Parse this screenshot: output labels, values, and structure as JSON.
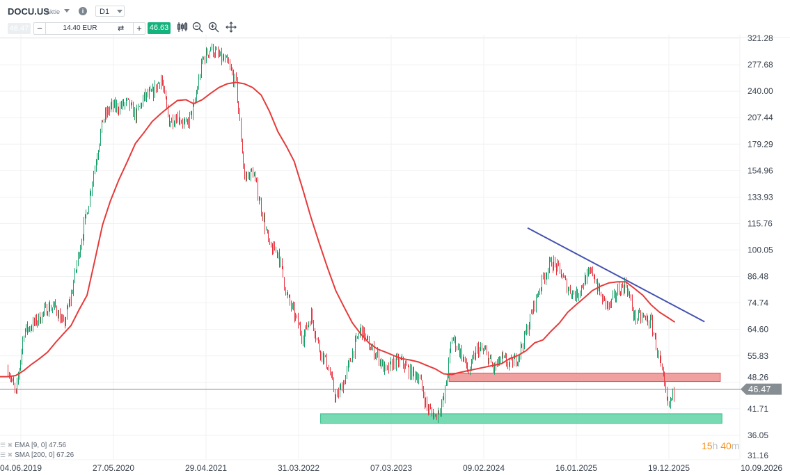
{
  "toolbar": {
    "symbol": "DOCU.US",
    "symbol_type": "Aktie",
    "info_icon": "info-icon",
    "timeframe": "D1",
    "sell_price": "46.47",
    "quantity": "14.40 EUR",
    "minus": "−",
    "plus": "+",
    "swap_icon": "⇄",
    "buy_price": "46.63",
    "tools": [
      "candlestick-icon",
      "zoom-out-icon",
      "zoom-in-icon",
      "move-icon"
    ]
  },
  "legend": [
    {
      "label": "EMA [9, 0] 47.56"
    },
    {
      "label": "SMA [200, 0] 67.26"
    }
  ],
  "countdown": {
    "hours": "15",
    "h": "h",
    "minutes": " 40",
    "m": "m"
  },
  "colors": {
    "up": "#16a06a",
    "down": "#e8323f",
    "sma": "#e63a3a",
    "trendline": "#4452b0",
    "resistance_zone": "#ef8f8f",
    "support_zone": "#5fd3a6",
    "last_price_tag": "#868e94"
  },
  "chart_data": {
    "type": "candlestick",
    "symbol": "DOCU.US",
    "y_scale": "log",
    "ylim": [
      31.16,
      321.28
    ],
    "y_ticks": [
      "321.28",
      "277.68",
      "240.00",
      "207.44",
      "179.29",
      "154.96",
      "133.93",
      "115.76",
      "100.05",
      "86.48",
      "74.74",
      "64.60",
      "55.83",
      "48.26",
      "41.71",
      "36.05",
      "31.16"
    ],
    "x_ticks": [
      "04.06.2019",
      "27.05.2020",
      "29.04.2021",
      "31.03.2022",
      "07.03.2023",
      "09.02.2024",
      "16.01.2025",
      "19.12.2025",
      "10.09.2026"
    ],
    "grid": true,
    "last_price": 46.47,
    "last_price_label": "46.47",
    "price_series": [
      [
        "2019-04-15",
        52
      ],
      [
        "2019-05-15",
        45
      ],
      [
        "2019-06-15",
        64
      ],
      [
        "2019-07-15",
        66
      ],
      [
        "2019-08-15",
        69
      ],
      [
        "2019-09-15",
        73
      ],
      [
        "2019-10-15",
        73
      ],
      [
        "2019-11-15",
        66
      ],
      [
        "2019-12-15",
        78
      ],
      [
        "2020-01-15",
        100
      ],
      [
        "2020-02-15",
        126
      ],
      [
        "2020-03-15",
        159
      ],
      [
        "2020-04-15",
        205
      ],
      [
        "2020-05-15",
        220
      ],
      [
        "2020-06-15",
        220
      ],
      [
        "2020-07-15",
        225
      ],
      [
        "2020-08-15",
        210
      ],
      [
        "2020-09-15",
        232
      ],
      [
        "2020-10-15",
        237
      ],
      [
        "2020-11-15",
        258
      ],
      [
        "2020-12-15",
        203
      ],
      [
        "2021-01-15",
        210
      ],
      [
        "2021-02-15",
        198
      ],
      [
        "2021-03-15",
        220
      ],
      [
        "2021-04-15",
        285
      ],
      [
        "2021-05-15",
        305
      ],
      [
        "2021-06-15",
        290
      ],
      [
        "2021-07-15",
        280
      ],
      [
        "2021-08-15",
        250
      ],
      [
        "2021-09-15",
        149
      ],
      [
        "2021-10-15",
        154
      ],
      [
        "2021-11-15",
        126
      ],
      [
        "2021-12-15",
        101
      ],
      [
        "2022-01-15",
        99
      ],
      [
        "2022-02-15",
        78
      ],
      [
        "2022-03-15",
        70
      ],
      [
        "2022-04-15",
        62
      ],
      [
        "2022-05-15",
        70
      ],
      [
        "2022-06-15",
        58
      ],
      [
        "2022-07-15",
        53
      ],
      [
        "2022-08-15",
        44
      ],
      [
        "2022-09-15",
        49
      ],
      [
        "2022-10-15",
        57
      ],
      [
        "2022-11-15",
        65
      ],
      [
        "2022-12-15",
        59
      ],
      [
        "2023-01-15",
        56
      ],
      [
        "2023-02-15",
        51
      ],
      [
        "2023-03-15",
        54
      ],
      [
        "2023-04-15",
        54
      ],
      [
        "2023-05-15",
        51
      ],
      [
        "2023-06-15",
        50
      ],
      [
        "2023-07-15",
        42
      ],
      [
        "2023-08-15",
        40
      ],
      [
        "2023-09-15",
        44
      ],
      [
        "2023-10-15",
        62
      ],
      [
        "2023-11-15",
        57
      ],
      [
        "2023-12-15",
        51
      ],
      [
        "2024-01-15",
        58
      ],
      [
        "2024-02-15",
        57
      ],
      [
        "2024-03-15",
        52
      ],
      [
        "2024-04-15",
        55
      ],
      [
        "2024-05-15",
        53
      ],
      [
        "2024-06-15",
        56
      ],
      [
        "2024-07-15",
        64
      ],
      [
        "2024-08-15",
        75
      ],
      [
        "2024-09-15",
        86
      ],
      [
        "2024-10-15",
        94
      ],
      [
        "2024-11-15",
        89
      ],
      [
        "2024-12-15",
        81
      ],
      [
        "2025-01-15",
        78
      ],
      [
        "2025-02-15",
        85
      ],
      [
        "2025-03-15",
        89
      ],
      [
        "2025-04-15",
        77
      ],
      [
        "2025-05-15",
        73
      ],
      [
        "2025-06-15",
        80
      ],
      [
        "2025-07-15",
        83
      ],
      [
        "2025-08-15",
        69
      ],
      [
        "2025-09-15",
        69
      ],
      [
        "2025-10-15",
        67
      ],
      [
        "2025-11-15",
        54
      ],
      [
        "2025-12-15",
        42
      ],
      [
        "2026-01-10",
        46.47
      ]
    ],
    "sma_200": [
      [
        "2019-04-15",
        49.8
      ],
      [
        "2019-05-15",
        50.1
      ],
      [
        "2019-06-15",
        51.5
      ],
      [
        "2019-07-15",
        53.3
      ],
      [
        "2019-08-15",
        55
      ],
      [
        "2019-09-15",
        57
      ],
      [
        "2019-10-15",
        60
      ],
      [
        "2019-11-15",
        63
      ],
      [
        "2019-12-15",
        66
      ],
      [
        "2020-01-15",
        72
      ],
      [
        "2020-02-15",
        78
      ],
      [
        "2020-03-15",
        94
      ],
      [
        "2020-04-15",
        115
      ],
      [
        "2020-05-15",
        131
      ],
      [
        "2020-06-15",
        147
      ],
      [
        "2020-07-15",
        162
      ],
      [
        "2020-08-15",
        180
      ],
      [
        "2020-09-15",
        191
      ],
      [
        "2020-10-15",
        203
      ],
      [
        "2020-11-15",
        212
      ],
      [
        "2020-12-15",
        220
      ],
      [
        "2021-01-15",
        228
      ],
      [
        "2021-02-15",
        229
      ],
      [
        "2021-03-15",
        224
      ],
      [
        "2021-04-15",
        229
      ],
      [
        "2021-05-15",
        237
      ],
      [
        "2021-06-15",
        245
      ],
      [
        "2021-07-15",
        250
      ],
      [
        "2021-08-15",
        252
      ],
      [
        "2021-09-15",
        250
      ],
      [
        "2021-10-15",
        245
      ],
      [
        "2021-11-15",
        235
      ],
      [
        "2021-12-15",
        215
      ],
      [
        "2022-01-15",
        192
      ],
      [
        "2022-02-15",
        177
      ],
      [
        "2022-03-15",
        163
      ],
      [
        "2022-04-15",
        140
      ],
      [
        "2022-05-15",
        120
      ],
      [
        "2022-06-15",
        104
      ],
      [
        "2022-07-15",
        91
      ],
      [
        "2022-08-15",
        80
      ],
      [
        "2022-09-15",
        73
      ],
      [
        "2022-10-15",
        67
      ],
      [
        "2022-11-15",
        63
      ],
      [
        "2022-12-15",
        60
      ],
      [
        "2023-01-15",
        58
      ],
      [
        "2023-02-15",
        57
      ],
      [
        "2023-03-15",
        56
      ],
      [
        "2023-04-15",
        55
      ],
      [
        "2023-05-15",
        54.6
      ],
      [
        "2023-06-15",
        54
      ],
      [
        "2023-07-15",
        53
      ],
      [
        "2023-08-15",
        52
      ],
      [
        "2023-09-15",
        50.6
      ],
      [
        "2023-10-15",
        50.4
      ],
      [
        "2023-11-15",
        51
      ],
      [
        "2023-12-15",
        51.5
      ],
      [
        "2024-01-15",
        52
      ],
      [
        "2024-02-15",
        52.5
      ],
      [
        "2024-03-15",
        53
      ],
      [
        "2024-04-15",
        53.5
      ],
      [
        "2024-05-15",
        55
      ],
      [
        "2024-06-15",
        56
      ],
      [
        "2024-07-15",
        57.5
      ],
      [
        "2024-08-15",
        60
      ],
      [
        "2024-09-15",
        61
      ],
      [
        "2024-10-15",
        64
      ],
      [
        "2024-11-15",
        67
      ],
      [
        "2024-12-15",
        71
      ],
      [
        "2025-01-15",
        74
      ],
      [
        "2025-02-15",
        77
      ],
      [
        "2025-03-15",
        80
      ],
      [
        "2025-04-15",
        82
      ],
      [
        "2025-05-15",
        83.5
      ],
      [
        "2025-06-15",
        84
      ],
      [
        "2025-07-15",
        84
      ],
      [
        "2025-08-15",
        81
      ],
      [
        "2025-09-15",
        78
      ],
      [
        "2025-10-15",
        74
      ],
      [
        "2025-11-15",
        71
      ],
      [
        "2025-12-15",
        69
      ],
      [
        "2026-01-10",
        67.26
      ]
    ],
    "trendline": {
      "from": [
        "2024-07-20",
        113
      ],
      "to": [
        "2026-05-01",
        67.4
      ]
    },
    "zones": [
      {
        "kind": "resistance",
        "from": "2023-10-05",
        "to": "2026-06-29",
        "low": 48.5,
        "high": 50.8
      },
      {
        "kind": "support",
        "from": "2022-06-20",
        "to": "2026-07-05",
        "low": 38.5,
        "high": 40.6
      }
    ]
  }
}
